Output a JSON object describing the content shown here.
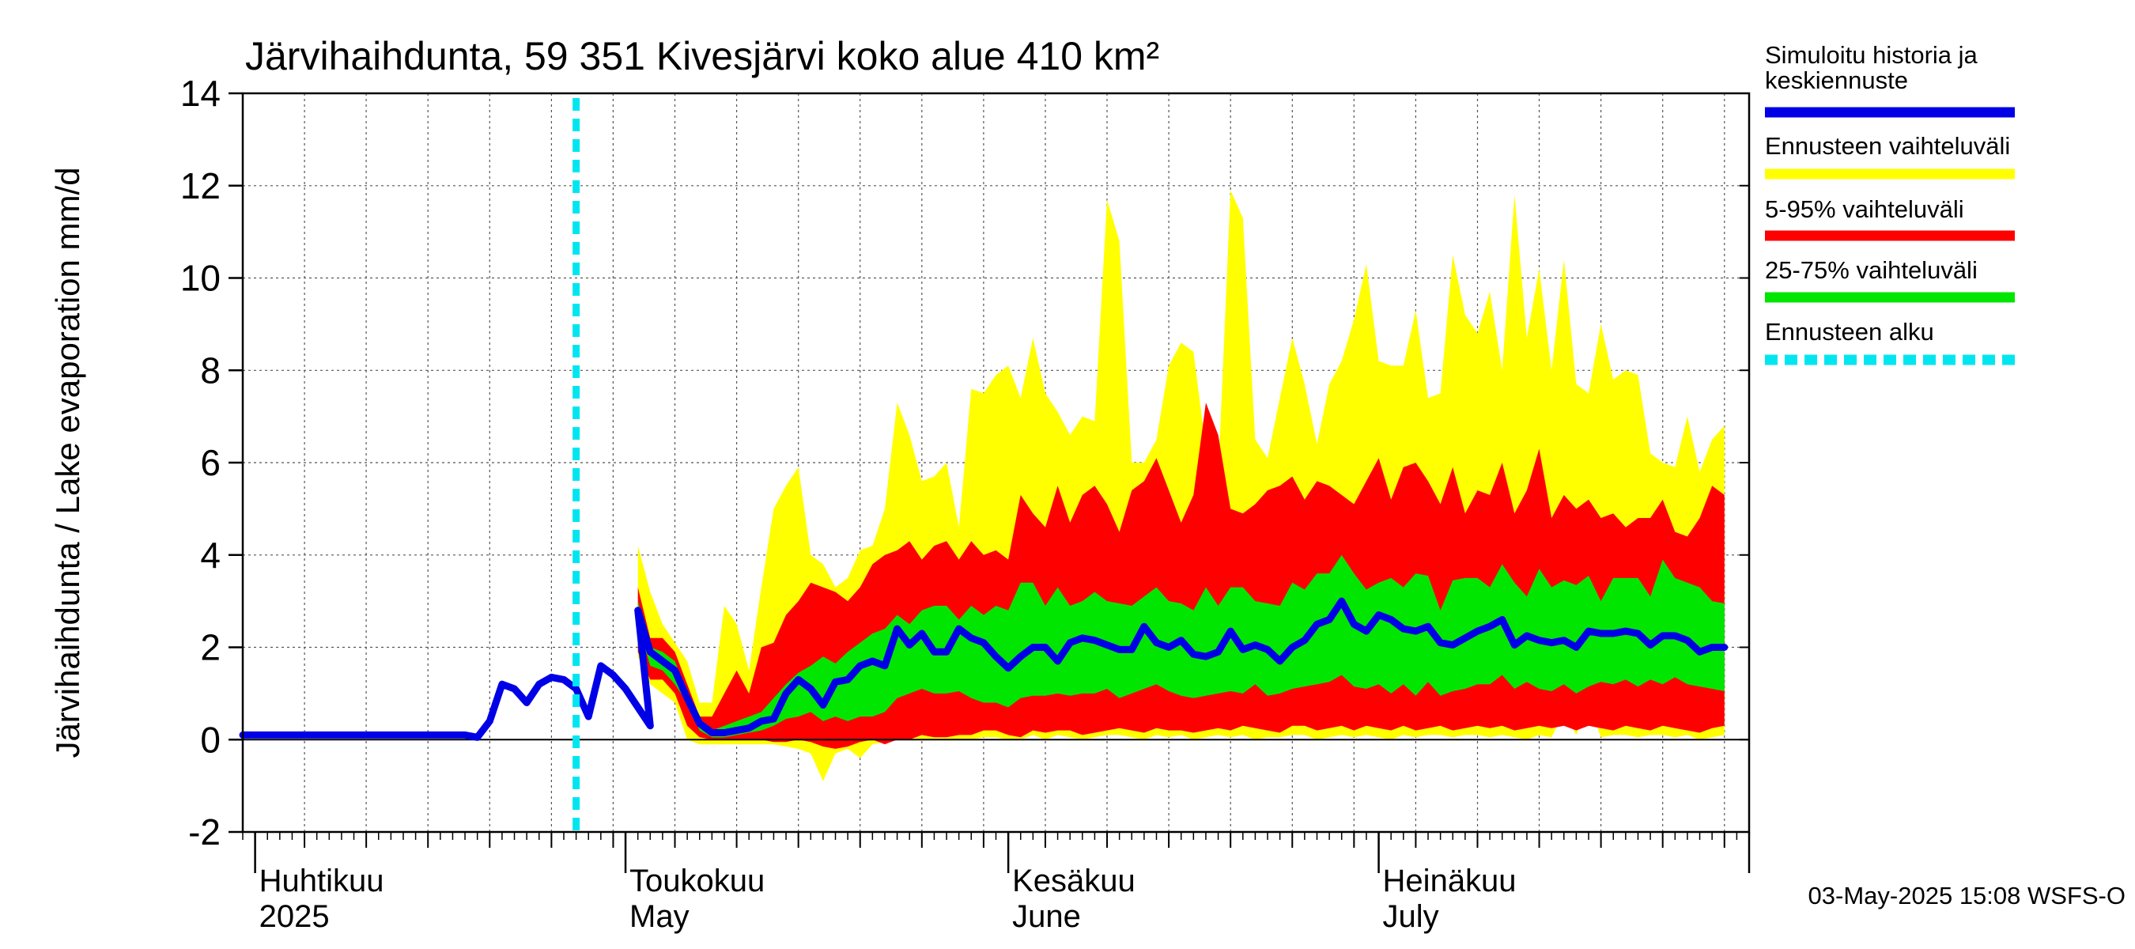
{
  "chart_data": {
    "type": "area",
    "title": "Järvihaihdunta, 59 351 Kivesjärvi koko alue 410 km²",
    "ylabel": "Järvihaihdunta / Lake evaporation   mm/d",
    "ylim": [
      -2,
      14
    ],
    "yticks": [
      -2,
      0,
      2,
      4,
      6,
      8,
      10,
      12,
      14
    ],
    "x_start": "2025-03-31",
    "x_end": "2025-07-31",
    "forecast_start": "2025-04-27",
    "month_labels": [
      {
        "fi": "Huhtikuu",
        "en": "2025",
        "date": "2025-04-01"
      },
      {
        "fi": "Toukokuu",
        "en": "May",
        "date": "2025-05-01"
      },
      {
        "fi": "Kesäkuu",
        "en": "June",
        "date": "2025-06-01"
      },
      {
        "fi": "Heinäkuu",
        "en": "July",
        "date": "2025-07-01"
      }
    ],
    "grid": true,
    "legend_position": "right",
    "timestamp": "03-May-2025 15:08 WSFS-O",
    "history": {
      "start": "2025-03-31",
      "values": [
        0.1,
        0.1,
        0.1,
        0.1,
        0.1,
        0.1,
        0.1,
        0.1,
        0.1,
        0.1,
        0.1,
        0.1,
        0.1,
        0.1,
        0.1,
        0.1,
        0.1,
        0.1,
        0.1,
        0.05,
        0.4,
        1.2,
        1.1,
        0.8,
        1.2,
        1.35,
        1.3,
        1.1,
        0.5,
        1.6,
        1.4,
        1.1,
        0.7,
        0.3
      ]
    },
    "forecast": {
      "start": "2025-05-02",
      "median": [
        2.8,
        1.9,
        1.7,
        1.5,
        0.9,
        0.35,
        0.15,
        0.15,
        0.2,
        0.25,
        0.4,
        0.45,
        1.0,
        1.3,
        1.1,
        0.75,
        1.25,
        1.3,
        1.6,
        1.7,
        1.6,
        2.4,
        2.05,
        2.3,
        1.9,
        1.9,
        2.4,
        2.2,
        2.1,
        1.8,
        1.55,
        1.8,
        2.0,
        2.0,
        1.7,
        2.1,
        2.2,
        2.15,
        2.05,
        1.95,
        1.95,
        2.45,
        2.1,
        2.0,
        2.15,
        1.85,
        1.8,
        1.9,
        2.35,
        1.95,
        2.05,
        1.95,
        1.7,
        2.0,
        2.15,
        2.5,
        2.6,
        3.0,
        2.5,
        2.35,
        2.7,
        2.6,
        2.4,
        2.35,
        2.45,
        2.1,
        2.05,
        2.2,
        2.35,
        2.45,
        2.6,
        2.05,
        2.25,
        2.15,
        2.1,
        2.15,
        2.0,
        2.35,
        2.3,
        2.3,
        2.35,
        2.3,
        2.05,
        2.25,
        2.25,
        2.15,
        1.9,
        2.0,
        2.0
      ],
      "p25": [
        2.5,
        1.6,
        1.5,
        1.2,
        0.8,
        0.2,
        0.05,
        0.05,
        0.1,
        0.15,
        0.2,
        0.3,
        0.45,
        0.5,
        0.6,
        0.4,
        0.5,
        0.4,
        0.5,
        0.5,
        0.6,
        0.9,
        1.0,
        1.1,
        1.0,
        1.0,
        1.05,
        0.9,
        0.8,
        0.8,
        0.7,
        0.9,
        0.95,
        0.95,
        1.0,
        0.95,
        1.0,
        1.0,
        1.1,
        0.9,
        1.0,
        1.1,
        1.2,
        1.05,
        0.95,
        0.9,
        0.95,
        1.0,
        1.05,
        1.0,
        1.2,
        0.95,
        1.0,
        1.1,
        1.15,
        1.2,
        1.25,
        1.4,
        1.15,
        1.1,
        1.2,
        1.0,
        1.2,
        0.95,
        1.25,
        0.95,
        1.05,
        1.1,
        1.2,
        1.2,
        1.4,
        1.1,
        1.25,
        1.1,
        1.05,
        1.2,
        1.0,
        1.15,
        1.25,
        1.2,
        1.3,
        1.15,
        1.3,
        1.2,
        1.35,
        1.2,
        1.15,
        1.1,
        1.05
      ],
      "p75": [
        3.0,
        2.0,
        1.9,
        1.7,
        1.0,
        0.4,
        0.2,
        0.3,
        0.4,
        0.5,
        0.6,
        0.9,
        1.2,
        1.45,
        1.6,
        1.8,
        1.65,
        1.9,
        2.1,
        2.3,
        2.4,
        2.7,
        2.5,
        2.8,
        2.9,
        2.9,
        2.6,
        2.9,
        2.7,
        2.9,
        2.8,
        3.4,
        3.4,
        2.9,
        3.3,
        2.9,
        3.0,
        3.2,
        3.0,
        2.95,
        2.9,
        3.1,
        3.3,
        3.0,
        2.95,
        2.8,
        3.3,
        2.9,
        3.3,
        3.3,
        3.0,
        2.95,
        2.9,
        3.4,
        3.25,
        3.6,
        3.6,
        4.0,
        3.6,
        3.25,
        3.4,
        3.5,
        3.3,
        3.6,
        3.55,
        2.8,
        3.45,
        3.5,
        3.5,
        3.3,
        3.8,
        3.4,
        3.1,
        3.7,
        3.3,
        3.45,
        3.35,
        3.55,
        3.0,
        3.5,
        3.5,
        3.5,
        3.1,
        3.9,
        3.5,
        3.4,
        3.3,
        3.0,
        2.95
      ],
      "p5": [
        1.9,
        1.3,
        1.3,
        1.0,
        0.3,
        0.05,
        0.0,
        0.0,
        0.0,
        0.0,
        0.0,
        -0.05,
        -0.05,
        0.0,
        -0.05,
        -0.15,
        -0.2,
        -0.15,
        -0.05,
        0.0,
        -0.1,
        0.0,
        0.0,
        0.1,
        0.05,
        0.05,
        0.1,
        0.1,
        0.2,
        0.2,
        0.1,
        0.05,
        0.2,
        0.15,
        0.2,
        0.2,
        0.1,
        0.15,
        0.2,
        0.25,
        0.2,
        0.15,
        0.25,
        0.2,
        0.2,
        0.15,
        0.2,
        0.25,
        0.2,
        0.3,
        0.25,
        0.2,
        0.15,
        0.3,
        0.3,
        0.2,
        0.25,
        0.3,
        0.2,
        0.3,
        0.25,
        0.2,
        0.3,
        0.2,
        0.25,
        0.3,
        0.2,
        0.25,
        0.3,
        0.25,
        0.3,
        0.2,
        0.25,
        0.3,
        0.25,
        0.3,
        0.2,
        0.3,
        0.25,
        0.2,
        0.3,
        0.25,
        0.2,
        0.3,
        0.25,
        0.2,
        0.15,
        0.25,
        0.3
      ],
      "p95": [
        3.3,
        2.2,
        2.2,
        1.9,
        1.2,
        0.5,
        0.5,
        1.0,
        1.5,
        1.0,
        2.0,
        2.1,
        2.7,
        3.0,
        3.4,
        3.3,
        3.2,
        3.0,
        3.3,
        3.8,
        4.0,
        4.1,
        4.3,
        3.9,
        4.2,
        4.3,
        3.9,
        4.3,
        4.0,
        4.1,
        3.9,
        5.3,
        4.9,
        4.6,
        5.5,
        4.7,
        5.3,
        5.5,
        5.1,
        4.5,
        5.4,
        5.6,
        6.1,
        5.4,
        4.7,
        5.3,
        7.3,
        6.6,
        5.0,
        4.9,
        5.1,
        5.4,
        5.5,
        5.7,
        5.2,
        5.6,
        5.5,
        5.3,
        5.1,
        5.6,
        6.1,
        5.2,
        5.9,
        6.0,
        5.6,
        5.1,
        5.9,
        4.9,
        5.4,
        5.3,
        6.0,
        4.9,
        5.4,
        6.3,
        4.8,
        5.3,
        5.0,
        5.2,
        4.8,
        4.9,
        4.6,
        4.8,
        4.8,
        5.2,
        4.5,
        4.4,
        4.8,
        5.5,
        5.3
      ],
      "min": [
        1.8,
        1.2,
        1.0,
        0.8,
        0.0,
        -0.1,
        -0.1,
        -0.1,
        -0.1,
        -0.1,
        -0.1,
        -0.1,
        -0.15,
        -0.2,
        -0.3,
        -0.9,
        -0.3,
        -0.2,
        -0.4,
        -0.1,
        -0.05,
        0.0,
        0.0,
        0.0,
        0.0,
        0.0,
        0.0,
        0.0,
        0.05,
        0.05,
        0.0,
        0.0,
        0.1,
        0.0,
        0.1,
        0.05,
        0.0,
        0.05,
        0.1,
        0.1,
        0.05,
        0.0,
        0.1,
        0.05,
        0.1,
        0.0,
        0.05,
        0.1,
        0.05,
        0.1,
        0.0,
        0.05,
        0.05,
        0.1,
        0.1,
        0.0,
        0.05,
        0.1,
        0.05,
        0.1,
        0.05,
        0.0,
        0.1,
        0.05,
        0.1,
        0.1,
        0.05,
        0.1,
        0.1,
        0.05,
        0.1,
        0.05,
        0.0,
        0.1,
        0.05,
        0.6,
        0.1,
        0.8,
        0.05,
        0.1,
        0.1,
        0.05,
        0.1,
        0.1,
        0.05,
        0.1,
        0.0,
        0.05,
        0.1
      ],
      "max": [
        4.2,
        3.2,
        2.5,
        2.1,
        1.7,
        0.8,
        0.8,
        2.9,
        2.5,
        1.5,
        3.3,
        5.0,
        5.5,
        5.9,
        4.0,
        3.8,
        3.3,
        3.5,
        4.1,
        4.2,
        5.0,
        7.3,
        6.6,
        5.6,
        5.7,
        6.0,
        4.6,
        7.6,
        7.5,
        7.9,
        8.1,
        7.4,
        8.7,
        7.5,
        7.1,
        6.6,
        7.0,
        6.9,
        11.7,
        10.8,
        6.0,
        6.0,
        6.5,
        8.1,
        8.6,
        8.4,
        6.3,
        5.7,
        11.9,
        11.3,
        6.5,
        6.1,
        7.4,
        8.7,
        7.7,
        6.4,
        7.7,
        8.2,
        9.1,
        10.3,
        8.2,
        8.1,
        8.1,
        9.3,
        7.4,
        7.5,
        10.5,
        9.2,
        8.8,
        9.7,
        8.0,
        11.8,
        8.7,
        10.2,
        8.0,
        10.4,
        7.7,
        7.5,
        9.0,
        7.8,
        8.0,
        7.9,
        6.2,
        6.0,
        5.9,
        7.0,
        5.8,
        6.5,
        6.8
      ]
    },
    "series": [
      {
        "name": "Simuloitu historia ja keskiennuste",
        "color": "#0000e6"
      },
      {
        "name": "Ennusteen vaihteluväli",
        "color": "#ffff00"
      },
      {
        "name": "5-95% vaihteluväli",
        "color": "#ff0000"
      },
      {
        "name": "25-75% vaihteluväli",
        "color": "#00e600"
      },
      {
        "name": "Ennusteen alku",
        "color": "#00e6f0"
      }
    ]
  },
  "legend": {
    "items": [
      {
        "lines": [
          "Simuloitu historia ja",
          "keskiennuste"
        ],
        "color": "#0000e6",
        "dashed": false
      },
      {
        "lines": [
          "Ennusteen vaihteluväli"
        ],
        "color": "#ffff00",
        "dashed": false
      },
      {
        "lines": [
          "5-95% vaihteluväli"
        ],
        "color": "#ff0000",
        "dashed": false
      },
      {
        "lines": [
          "25-75% vaihteluväli"
        ],
        "color": "#00e600",
        "dashed": false
      },
      {
        "lines": [
          "Ennusteen alku"
        ],
        "color": "#00e6f0",
        "dashed": true
      }
    ]
  }
}
